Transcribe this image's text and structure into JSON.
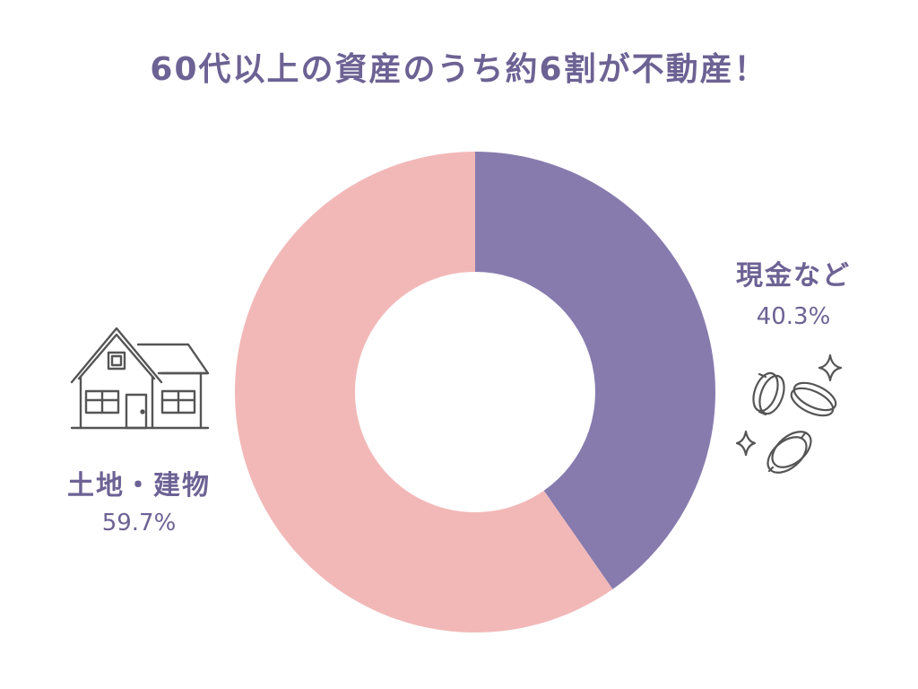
{
  "title": "60代以上の資産のうち約6割が不動産！",
  "colors": {
    "title": "#6d6294",
    "cash": "#877bae",
    "real_estate": "#f2b8b8",
    "icon_stroke": "#555555"
  },
  "icons": {
    "real_estate": "house-icon",
    "cash": "coins-icon"
  },
  "chart_data": {
    "type": "pie",
    "donut": true,
    "start_angle_deg": 0,
    "direction": "clockwise",
    "labels": {
      "cash": {
        "name": "現金など",
        "value_label": "40.3%"
      },
      "real_estate": {
        "name": "土地・建物",
        "value_label": "59.7%"
      }
    },
    "slices": [
      {
        "name": "現金など",
        "value": 40.3,
        "color": "#877bae"
      },
      {
        "name": "土地・建物",
        "value": 59.7,
        "color": "#f2b8b8"
      }
    ]
  }
}
